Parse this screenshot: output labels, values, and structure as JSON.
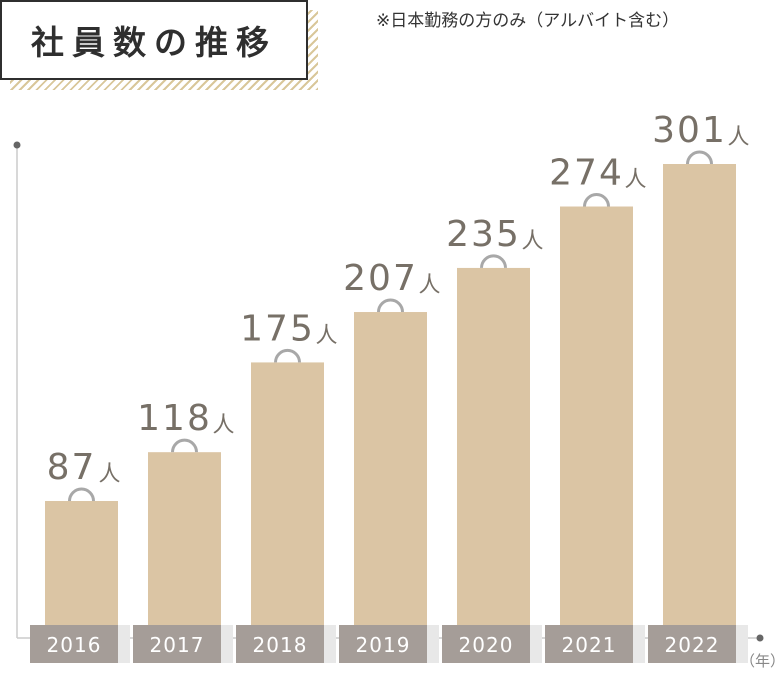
{
  "header": {
    "title": "社員数の推移",
    "note": "※日本勤務の方のみ（アルバイト含む）"
  },
  "unit_label": "（年）",
  "colors": {
    "bar": "#dbc5a4",
    "year_tag": "#a59d98",
    "value_text": "#777067",
    "axis": "#cccccc",
    "handle": "#a8a8a8"
  },
  "chart_data": {
    "type": "bar",
    "categories": [
      "2016",
      "2017",
      "2018",
      "2019",
      "2020",
      "2021",
      "2022"
    ],
    "values": [
      87,
      118,
      175,
      207,
      235,
      274,
      301
    ],
    "value_suffix": "人",
    "ylim": [
      0,
      320
    ],
    "grid": false,
    "legend": "none",
    "title": "社員数の推移",
    "xlabel": "（年）",
    "ylabel": ""
  }
}
